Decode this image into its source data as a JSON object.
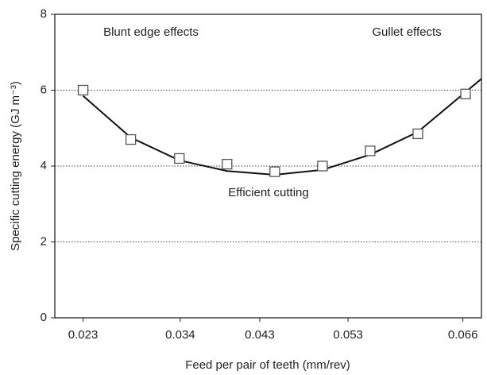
{
  "chart_data": {
    "type": "scatter",
    "xlabel": "Feed per pair of teeth (mm/rev)",
    "ylabel": "Specific cutting energy (GJ m⁻³)",
    "xlim": [
      0.0198,
      0.0681
    ],
    "xticks": [
      0.023,
      0.034,
      0.043,
      0.053,
      0.066
    ],
    "ylim": [
      0,
      8
    ],
    "yticks": [
      0,
      2,
      4,
      6,
      8
    ],
    "grid": true,
    "x": [
      0.023,
      0.0284,
      0.0339,
      0.0393,
      0.0447,
      0.0501,
      0.0555,
      0.0609,
      0.0663
    ],
    "values": [
      6.0,
      4.7,
      4.2,
      4.05,
      3.85,
      4.0,
      4.4,
      4.85,
      5.9
    ],
    "fit_curve": {
      "x": [
        0.023,
        0.0284,
        0.0339,
        0.0393,
        0.0447,
        0.0501,
        0.0555,
        0.0609,
        0.0663,
        0.0681
      ],
      "values": [
        5.85,
        4.75,
        4.15,
        3.87,
        3.77,
        3.9,
        4.3,
        4.9,
        5.95,
        6.3
      ]
    },
    "annotations": [
      "Blunt edge effects",
      "Gullet effects",
      "Efficient cutting"
    ]
  }
}
